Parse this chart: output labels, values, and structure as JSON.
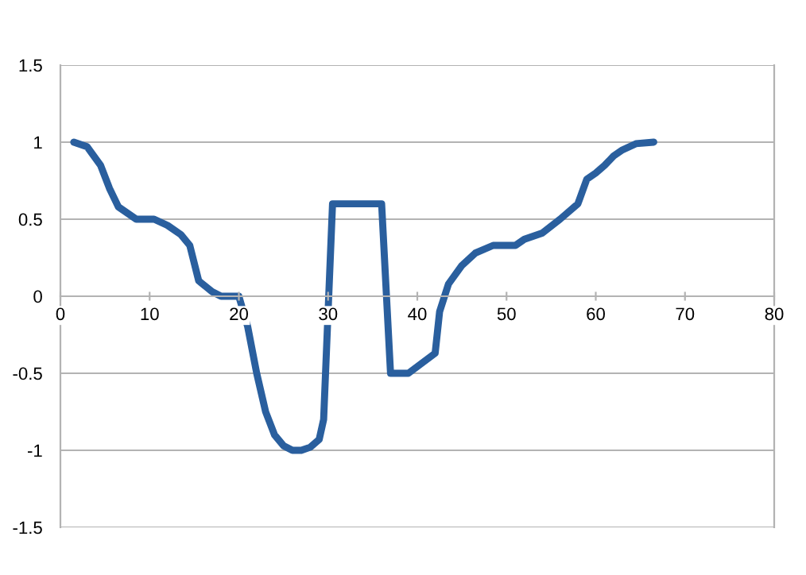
{
  "chart_data": {
    "type": "line",
    "x": [
      1.5,
      3,
      4.5,
      5.5,
      6.5,
      8.5,
      10.5,
      12,
      13.5,
      14.5,
      15.5,
      17,
      18,
      20,
      21,
      22,
      23,
      24,
      25,
      26,
      27,
      28,
      29,
      29.5,
      30.5,
      36,
      37,
      39,
      42,
      42.5,
      43.5,
      45,
      46.5,
      48.5,
      51,
      52,
      54,
      56,
      58,
      59,
      60,
      61,
      62,
      63,
      64.5,
      66.5
    ],
    "series": [
      {
        "color": "#2a5f9e",
        "values": [
          1,
          0.97,
          0.85,
          0.7,
          0.58,
          0.5,
          0.5,
          0.46,
          0.4,
          0.33,
          0.1,
          0.03,
          0,
          0,
          -0.2,
          -0.5,
          -0.75,
          -0.9,
          -0.97,
          -1,
          -1,
          -0.98,
          -0.93,
          -0.8,
          0.6,
          0.6,
          -0.5,
          -0.5,
          -0.37,
          -0.1,
          0.08,
          0.2,
          0.28,
          0.33,
          0.33,
          0.37,
          0.41,
          0.5,
          0.6,
          0.76,
          0.8,
          0.85,
          0.91,
          0.95,
          0.99,
          1
        ]
      }
    ],
    "xlim": [
      0,
      80
    ],
    "xticks": [
      0,
      10,
      20,
      30,
      40,
      50,
      60,
      70,
      80
    ],
    "ylim": [
      -1.5,
      1.5
    ],
    "yticks": [
      -1.5,
      -1,
      -0.5,
      0,
      0.5,
      1,
      1.5
    ],
    "grid": "y",
    "marker": "none",
    "line_style": "solid",
    "legend": false
  }
}
